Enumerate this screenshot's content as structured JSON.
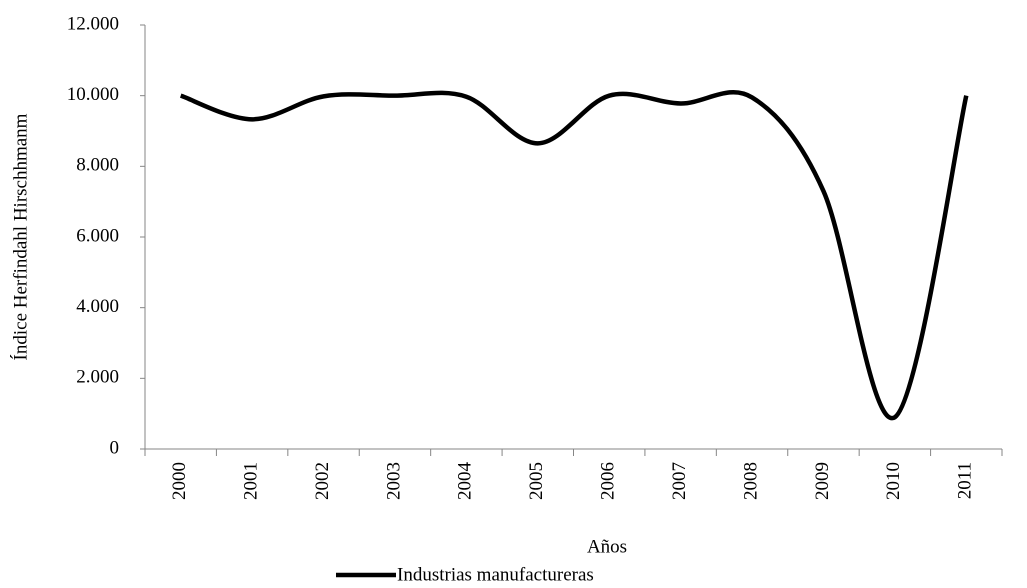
{
  "chart_data": {
    "type": "line",
    "x_label": "Años",
    "y_label": "Índice Herfindahl Hirschhmanm",
    "categories": [
      "2000",
      "2001",
      "2002",
      "2003",
      "2004",
      "2005",
      "2006",
      "2007",
      "2008",
      "2009",
      "2010",
      "2011"
    ],
    "series": [
      {
        "name": "Industrias manufactureras",
        "color": "#000000",
        "values": [
          10000,
          9330,
          9980,
          10000,
          9970,
          8650,
          10000,
          9780,
          9950,
          7300,
          900,
          10000
        ]
      }
    ],
    "ylim": [
      0,
      12000
    ],
    "yticks": [
      0,
      {
        "value": 2000,
        "label": "2.000"
      },
      {
        "value": 4000,
        "label": "4.000"
      },
      {
        "value": 6000,
        "label": "6.000"
      },
      {
        "value": 8000,
        "label": "8.000"
      },
      {
        "value": 10000,
        "label": "10.000"
      },
      {
        "value": 12000,
        "label": "12.000"
      }
    ],
    "smooth": true,
    "legend": "bottom"
  }
}
